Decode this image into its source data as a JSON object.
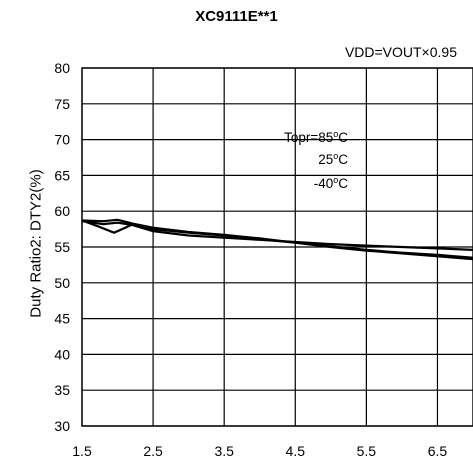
{
  "chart_data": {
    "type": "line",
    "title": "XC9111E**1",
    "condition": "VDD=VOUT×0.95",
    "xlabel": "",
    "ylabel": "Duty Ratio2: DTY2(%)",
    "xlim": [
      1.5,
      7.0
    ],
    "ylim": [
      30,
      80
    ],
    "x_ticks": [
      "1.5",
      "2.5",
      "3.5",
      "4.5",
      "5.5",
      "6.5"
    ],
    "y_ticks": [
      "80",
      "75",
      "70",
      "65",
      "60",
      "55",
      "50",
      "45",
      "40",
      "35",
      "30"
    ],
    "grid": true,
    "annotations": [
      {
        "prefix": "Topr=",
        "value": "85",
        "unit": "C"
      },
      {
        "prefix": "",
        "value": "25",
        "unit": "C"
      },
      {
        "prefix": "",
        "value": "-40",
        "unit": "C"
      }
    ],
    "series": [
      {
        "key": "s85",
        "x": [
          1.5,
          1.75,
          1.95,
          2.2,
          2.5,
          3.0,
          3.5,
          4.0,
          4.5,
          5.0,
          5.5,
          6.0,
          6.5,
          7.0
        ],
        "values": [
          58.7,
          57.8,
          57.0,
          58.1,
          57.2,
          56.6,
          56.3,
          56.0,
          55.7,
          55.4,
          55.2,
          55.0,
          54.8,
          54.6
        ]
      },
      {
        "key": "s25",
        "x": [
          1.5,
          1.8,
          2.0,
          2.2,
          2.5,
          3.0,
          3.5,
          4.0,
          4.5,
          5.0,
          5.5,
          6.0,
          6.5,
          7.0
        ],
        "values": [
          58.6,
          58.2,
          58.4,
          58.1,
          57.5,
          57.0,
          56.6,
          56.1,
          55.6,
          55.1,
          54.6,
          54.2,
          53.9,
          53.5
        ]
      },
      {
        "key": "sm40",
        "x": [
          1.5,
          1.8,
          2.0,
          2.2,
          2.5,
          3.0,
          3.5,
          4.0,
          4.5,
          5.0,
          5.5,
          6.0,
          6.5,
          7.0
        ],
        "values": [
          58.7,
          58.6,
          58.8,
          58.3,
          57.7,
          57.1,
          56.7,
          56.2,
          55.6,
          55.0,
          54.5,
          54.1,
          53.7,
          53.3
        ]
      }
    ]
  }
}
